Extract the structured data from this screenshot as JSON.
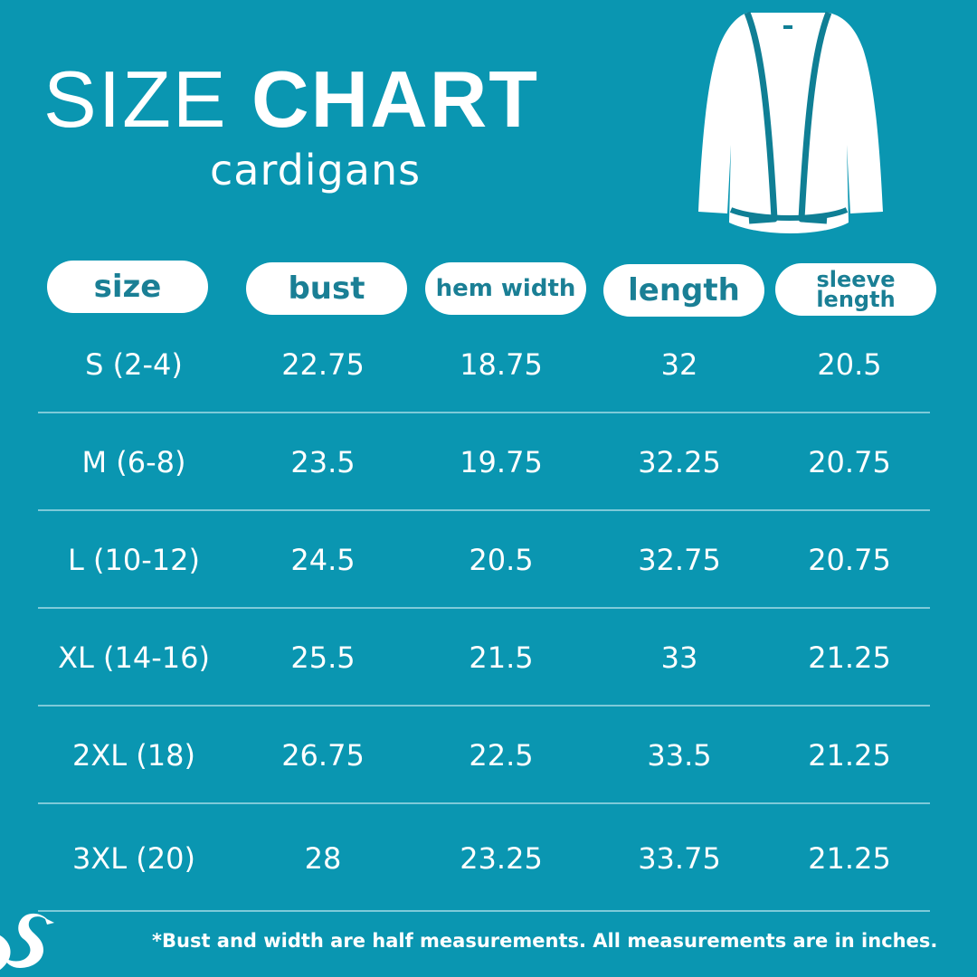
{
  "title": {
    "light": "SIZE",
    "bold": "CHART"
  },
  "subtitle": "cardigans",
  "headers": {
    "size": "size",
    "bust": "bust",
    "hem_width": "hem width",
    "length": "length",
    "sleeve_length": "sleeve length"
  },
  "rows": [
    {
      "size": "S (2-4)",
      "bust": "22.75",
      "hem_width": "18.75",
      "length": "32",
      "sleeve_length": "20.5"
    },
    {
      "size": "M (6-8)",
      "bust": "23.5",
      "hem_width": "19.75",
      "length": "32.25",
      "sleeve_length": "20.75"
    },
    {
      "size": "L (10-12)",
      "bust": "24.5",
      "hem_width": "20.5",
      "length": "32.75",
      "sleeve_length": "20.75"
    },
    {
      "size": "XL (14-16)",
      "bust": "25.5",
      "hem_width": "21.5",
      "length": "33",
      "sleeve_length": "21.25"
    },
    {
      "size": "2XL (18)",
      "bust": "26.75",
      "hem_width": "22.5",
      "length": "33.5",
      "sleeve_length": "21.25"
    },
    {
      "size": "3XL (20)",
      "bust": "28",
      "hem_width": "23.25",
      "length": "33.75",
      "sleeve_length": "21.25"
    }
  ],
  "footnote": "*Bust and width are half measurements. All measurements are in inches.",
  "icons": {
    "garment": "cardigan-icon",
    "brand": "swan-logo-icon"
  },
  "colors": {
    "background": "#0a96b1",
    "pill": "#ffffff",
    "pill_text": "#1a7f95",
    "divider": "#7ecad9"
  }
}
